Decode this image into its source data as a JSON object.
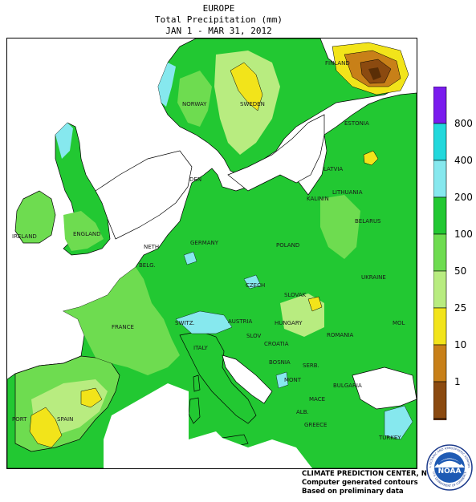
{
  "header": {
    "region": "EUROPE",
    "variable": "Total Precipitation (mm)",
    "period": "JAN  1 - MAR 31, 2012"
  },
  "legend": {
    "levels": [
      {
        "label": "1",
        "color": "#8b4a10"
      },
      {
        "label": "10",
        "color": "#c88018"
      },
      {
        "label": "25",
        "color": "#f2e41a"
      },
      {
        "label": "50",
        "color": "#b8ec80"
      },
      {
        "label": "100",
        "color": "#6edc50"
      },
      {
        "label": "200",
        "color": "#22c832"
      },
      {
        "label": "400",
        "color": "#86e8ee"
      },
      {
        "label": "800",
        "color": "#22d8dc"
      },
      {
        "label": "",
        "color": "#7a1cee"
      }
    ],
    "low_color": "#5a2e06",
    "tick_labels": [
      "1",
      "10",
      "25",
      "50",
      "100",
      "200",
      "400",
      "800"
    ]
  },
  "map_labels": {
    "finland": "FINLAND",
    "norway": "NORWAY",
    "sweden": "SWEDEN",
    "estonia": "ESTONIA",
    "latvia": "LATVIA",
    "den": "DEN",
    "lithuania": "LITHUANIA",
    "kalinin": "KALININ",
    "belarus": "BELARUS",
    "ireland": "IRELAND",
    "england": "ENGLAND",
    "neth": "NETH",
    "germany": "GERMANY",
    "poland": "POLAND",
    "belg": "BELG.",
    "czech": "CZECH",
    "ukraine": "UKRAINE",
    "slovak": "SLOVAK",
    "france": "FRANCE",
    "switz": "SWITZ.",
    "austria": "AUSTRIA",
    "hungary": "HUNGARY",
    "mol": "MOL",
    "slov": "SLOV",
    "italy": "ITALY",
    "croatia": "CROATIA",
    "romania": "ROMANIA",
    "bosnia": "BOSNIA",
    "serb": "SERB.",
    "mont": "MONT",
    "bulgaria": "BULGARIA",
    "mace": "MACE",
    "alb": "ALB.",
    "port": "PORT",
    "spain": "SPAIN",
    "greece": "GREECE",
    "turkey": "TURKEY"
  },
  "credit": {
    "line1": "CLIMATE PREDICTION CENTER, NOAA",
    "line2": "Computer generated contours",
    "line3": "Based on preliminary data"
  },
  "logo": {
    "text": "NOAA",
    "ring_top": "NATIONAL OCEANIC AND ATMOSPHERIC ADMINISTRATION",
    "ring_bottom": "U.S. DEPARTMENT OF COMMERCE"
  }
}
